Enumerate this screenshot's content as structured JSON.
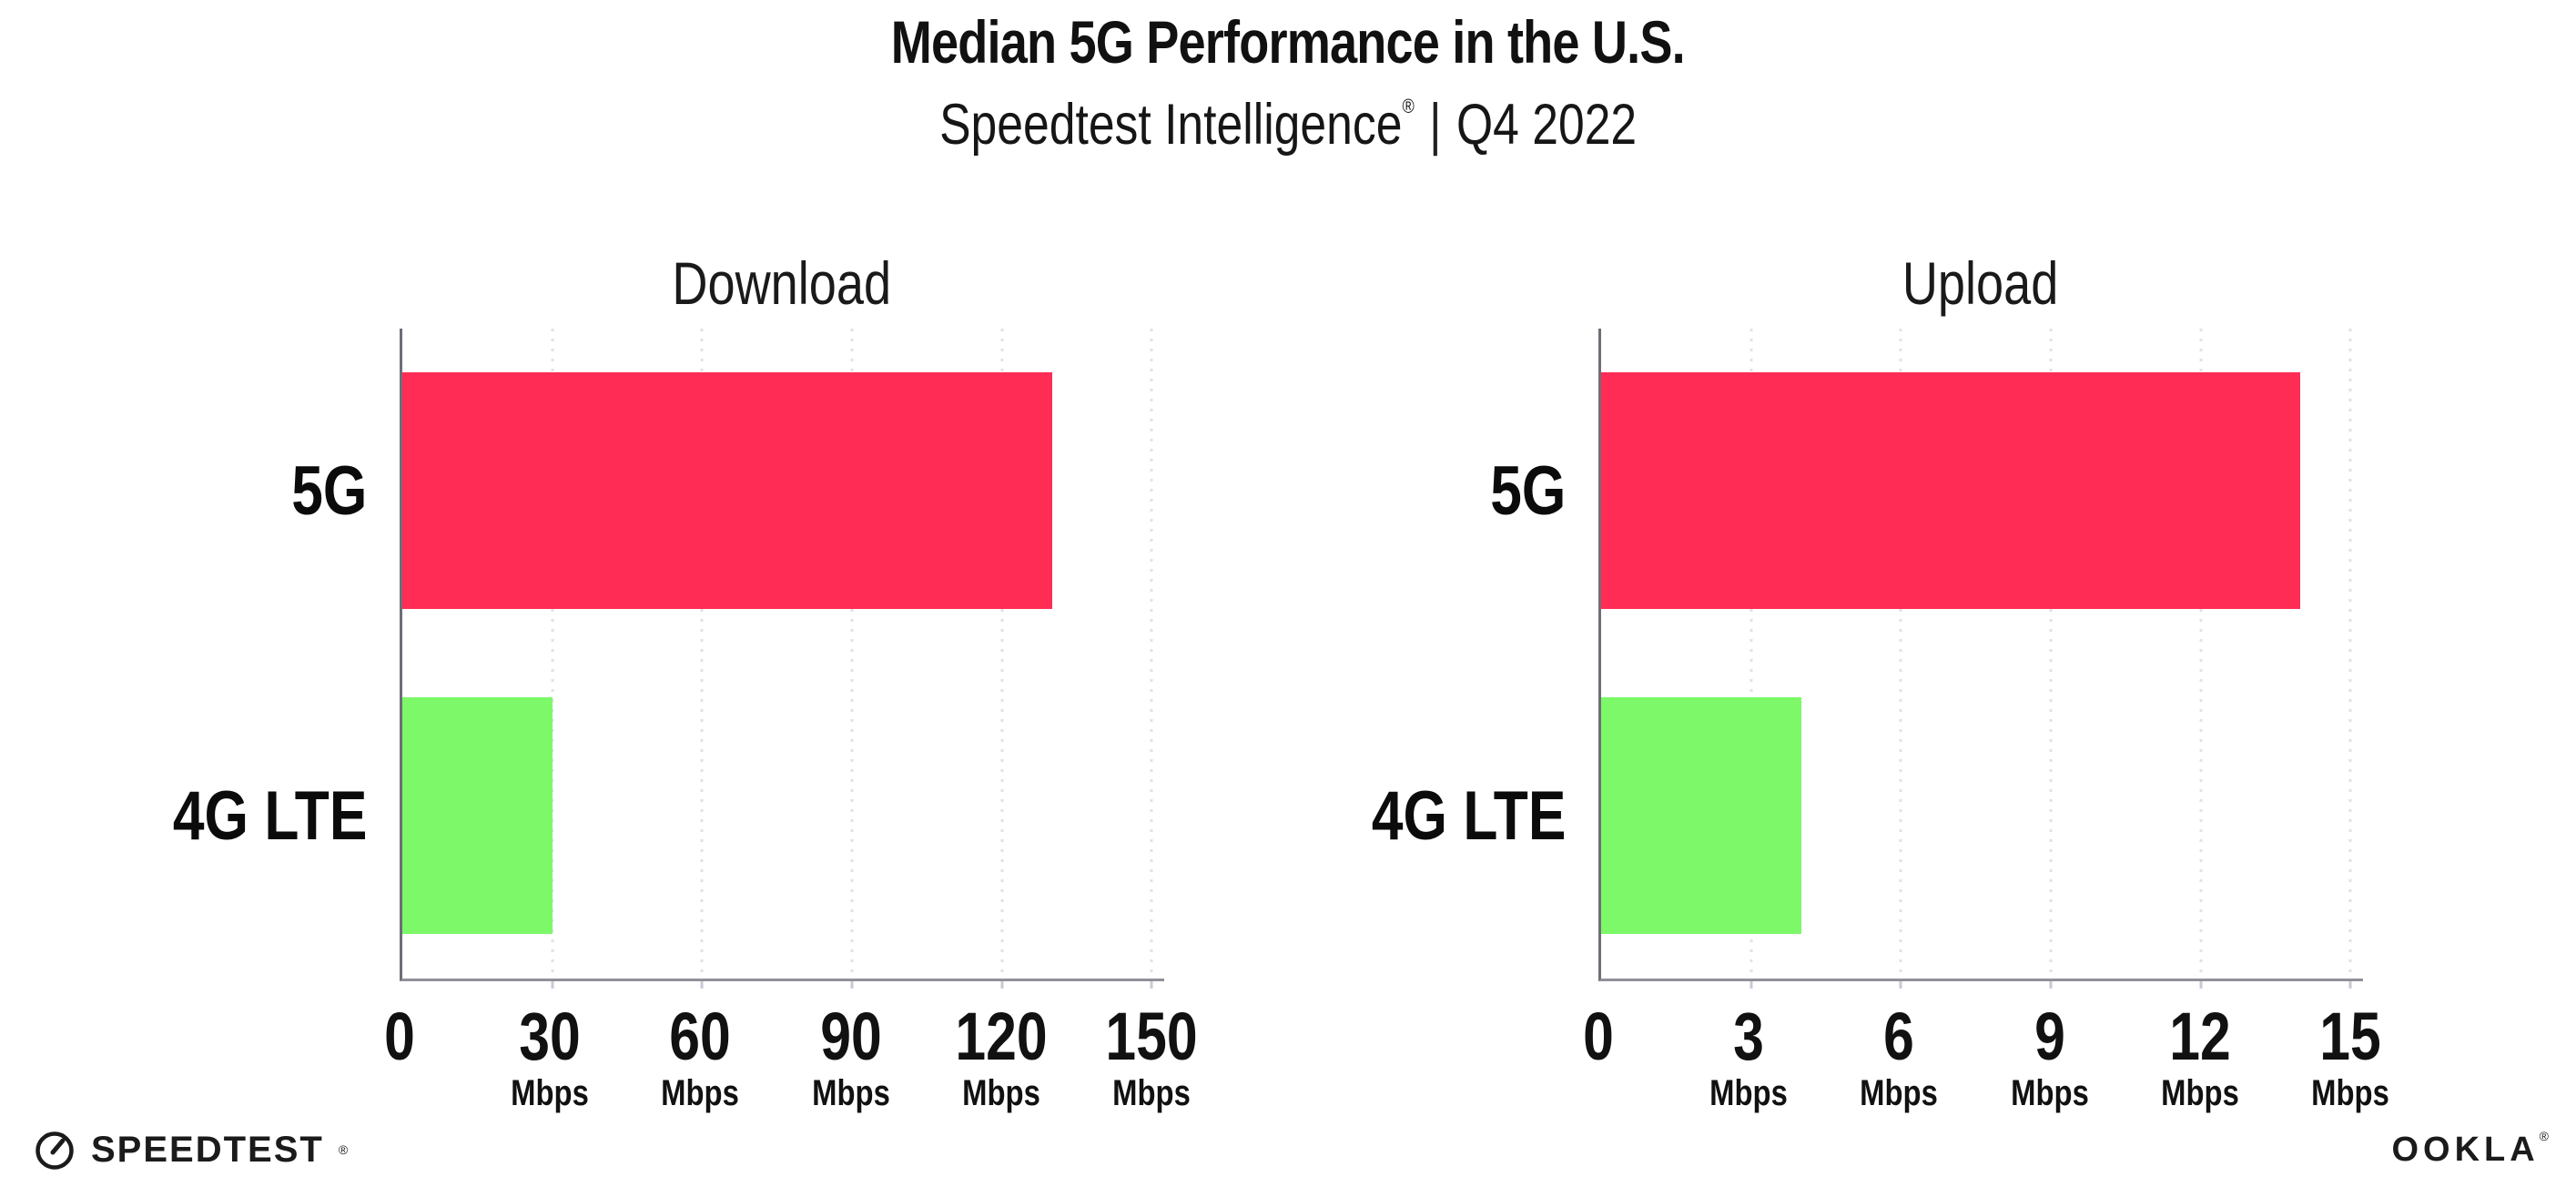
{
  "header": {
    "title": "Median 5G Performance in the U.S.",
    "subtitle_brand": "Speedtest Intelligence",
    "subtitle_reg": "®",
    "subtitle_sep": "|",
    "subtitle_period": "Q4 2022"
  },
  "colors": {
    "bar_5g": "#FF2D55",
    "bar_4g_lte": "#7DF869",
    "gridline": "#E1E1ED",
    "x_axis": "#90909A",
    "y_axis": "#6E6E78",
    "text": "#111111"
  },
  "chart_data": [
    {
      "type": "bar",
      "orientation": "horizontal",
      "title": "Download",
      "categories": [
        "5G",
        "4G LTE"
      ],
      "values": [
        130,
        30
      ],
      "unit": "Mbps",
      "xlim": [
        0,
        152.5
      ],
      "ticks": [
        0,
        30,
        60,
        90,
        120,
        150
      ],
      "tick_unit": "Mbps",
      "grid": "vertical dotted",
      "legend": "none",
      "bar_colors": [
        "#FF2D55",
        "#7DF869"
      ]
    },
    {
      "type": "bar",
      "orientation": "horizontal",
      "title": "Upload",
      "categories": [
        "5G",
        "4G LTE"
      ],
      "values": [
        14,
        4
      ],
      "unit": "Mbps",
      "xlim": [
        0,
        15.25
      ],
      "ticks": [
        0,
        3,
        6,
        9,
        12,
        15
      ],
      "tick_unit": "Mbps",
      "grid": "vertical dotted",
      "legend": "none",
      "bar_colors": [
        "#FF2D55",
        "#7DF869"
      ]
    }
  ],
  "footer": {
    "speedtest_label": "SPEEDTEST",
    "speedtest_reg": "®",
    "ookla_label": "OOKLA",
    "ookla_reg": "®"
  }
}
